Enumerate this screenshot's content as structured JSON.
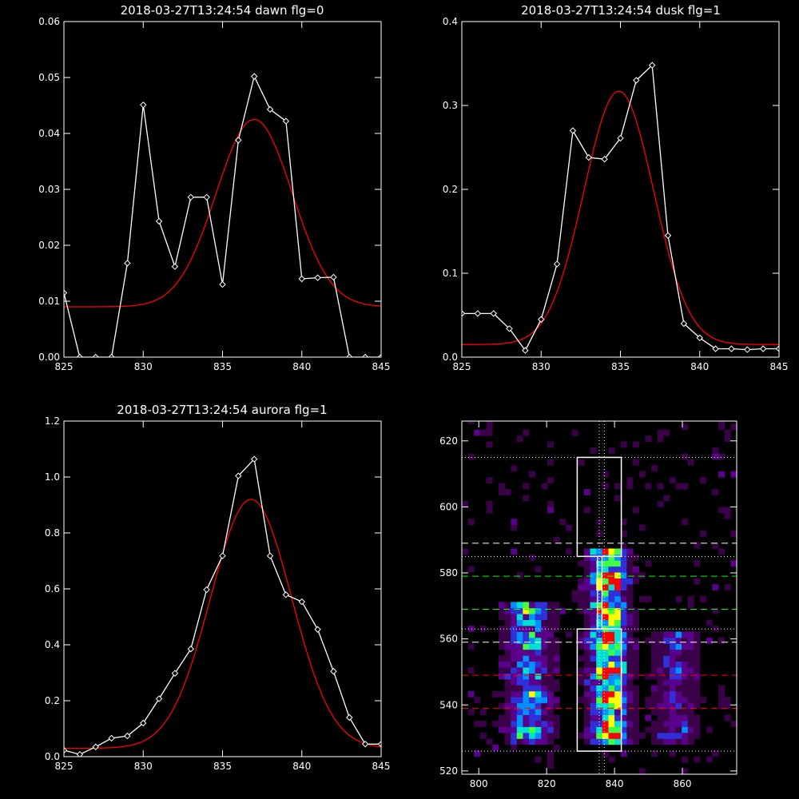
{
  "chart_data": [
    {
      "type": "line",
      "title": "2018-03-27T13:24:54 dawn flg=0",
      "xlim": [
        825,
        845
      ],
      "ylim": [
        0,
        0.06
      ],
      "xticks": [
        "825",
        "830",
        "835",
        "840",
        "845"
      ],
      "yticks": [
        "0.00",
        "0.01",
        "0.02",
        "0.03",
        "0.04",
        "0.05",
        "0.06"
      ],
      "xtick_values": [
        825,
        830,
        835,
        840,
        845
      ],
      "ytick_values": [
        0,
        0.01,
        0.02,
        0.03,
        0.04,
        0.05,
        0.06
      ],
      "series": [
        {
          "kind": "data",
          "color": "#ffffff",
          "marker": "diamond",
          "x": [
            825,
            826,
            827,
            828,
            829,
            830,
            831,
            832,
            833,
            834,
            835,
            836,
            837,
            838,
            839,
            840,
            841,
            842,
            843,
            844,
            845
          ],
          "y": [
            0.0115,
            0.0,
            0.0,
            0.0,
            0.0168,
            0.0451,
            0.0243,
            0.0162,
            0.0286,
            0.0286,
            0.013,
            0.0388,
            0.0502,
            0.0443,
            0.0422,
            0.014,
            0.0142,
            0.0143,
            0.0,
            0.0,
            0.0
          ]
        },
        {
          "kind": "fit",
          "color": "#ff0000",
          "gaussian": {
            "offset": 0.009,
            "amp": 0.0335,
            "center": 837.0,
            "sigma": 2.4
          }
        }
      ]
    },
    {
      "type": "line",
      "title": "2018-03-27T13:24:54 dusk flg=1",
      "xlim": [
        825,
        845
      ],
      "ylim": [
        0,
        0.4
      ],
      "xticks": [
        "825",
        "830",
        "835",
        "840",
        "845"
      ],
      "yticks": [
        "0.0",
        "0.1",
        "0.2",
        "0.3",
        "0.4"
      ],
      "xtick_values": [
        825,
        830,
        835,
        840,
        845
      ],
      "ytick_values": [
        0,
        0.1,
        0.2,
        0.3,
        0.4
      ],
      "series": [
        {
          "kind": "data",
          "color": "#ffffff",
          "marker": "diamond",
          "x": [
            825,
            826,
            827,
            828,
            829,
            830,
            831,
            832,
            833,
            834,
            835,
            836,
            837,
            838,
            839,
            840,
            841,
            842,
            843,
            844,
            845
          ],
          "y": [
            0.052,
            0.052,
            0.052,
            0.034,
            0.008,
            0.045,
            0.111,
            0.27,
            0.238,
            0.236,
            0.261,
            0.33,
            0.348,
            0.145,
            0.04,
            0.023,
            0.01,
            0.01,
            0.009,
            0.01,
            0.01
          ]
        },
        {
          "kind": "fit",
          "color": "#ff0000",
          "gaussian": {
            "offset": 0.015,
            "amp": 0.302,
            "center": 834.9,
            "sigma": 2.2
          }
        }
      ]
    },
    {
      "type": "line",
      "title": "2018-03-27T13:24:54 aurora flg=1",
      "xlim": [
        825,
        845
      ],
      "ylim": [
        0,
        1.2
      ],
      "xticks": [
        "825",
        "830",
        "835",
        "840",
        "845"
      ],
      "yticks": [
        "0.0",
        "0.2",
        "0.4",
        "0.6",
        "0.8",
        "1.0",
        "1.2"
      ],
      "xtick_values": [
        825,
        830,
        835,
        840,
        845
      ],
      "ytick_values": [
        0,
        0.2,
        0.4,
        0.6,
        0.8,
        1.0,
        1.2
      ],
      "series": [
        {
          "kind": "data",
          "color": "#ffffff",
          "marker": "diamond",
          "x": [
            825,
            826,
            827,
            828,
            829,
            830,
            831,
            832,
            833,
            834,
            835,
            836,
            837,
            838,
            839,
            840,
            841,
            842,
            843,
            844,
            845
          ],
          "y": [
            0.023,
            0.008,
            0.035,
            0.066,
            0.074,
            0.12,
            0.207,
            0.298,
            0.385,
            0.597,
            0.718,
            1.004,
            1.064,
            0.718,
            0.579,
            0.554,
            0.455,
            0.305,
            0.14,
            0.045,
            0.045
          ]
        },
        {
          "kind": "fit",
          "color": "#ff0000",
          "gaussian": {
            "offset": 0.03,
            "amp": 0.89,
            "center": 836.8,
            "sigma": 2.55
          }
        }
      ]
    },
    {
      "type": "heatmap",
      "title": "",
      "xlim": [
        795,
        876
      ],
      "ylim": [
        519,
        626
      ],
      "xticks": [
        "800",
        "820",
        "840",
        "860"
      ],
      "yticks": [
        "520",
        "540",
        "560",
        "580",
        "600",
        "620"
      ],
      "xtick_values": [
        800,
        820,
        840,
        860
      ],
      "ytick_values": [
        520,
        540,
        560,
        580,
        600,
        620
      ],
      "colormap": [
        "#000000",
        "#3a0048",
        "#5a008a",
        "#3030d8",
        "#0090ff",
        "#00e0d0",
        "#40ff40",
        "#ffff00",
        "#ff0000"
      ],
      "emission_columns": [
        {
          "center": 814,
          "width": 4,
          "ymin": 527,
          "ymax": 570,
          "peak": 0.6
        },
        {
          "center": 837.5,
          "width": 3.5,
          "ymin": 527,
          "ymax": 586,
          "peak": 1.0
        },
        {
          "center": 857,
          "width": 4,
          "ymin": 527,
          "ymax": 562,
          "peak": 0.35
        }
      ],
      "boxes": [
        {
          "x": [
            829,
            842
          ],
          "y": [
            526,
            563
          ],
          "color": "#ffffff"
        },
        {
          "x": [
            829,
            842
          ],
          "y": [
            585,
            615
          ],
          "color": "#ffffff"
        }
      ],
      "hlines": [
        {
          "y": 615,
          "style": "dotted",
          "color": "#ffffff"
        },
        {
          "y": 589,
          "style": "dashed",
          "color": "#ffffff"
        },
        {
          "y": 585,
          "style": "dotted",
          "color": "#ffffff"
        },
        {
          "y": 579,
          "style": "dashed",
          "color": "#00ff00"
        },
        {
          "y": 569,
          "style": "dashed",
          "color": "#00ff00"
        },
        {
          "y": 563,
          "style": "dotted",
          "color": "#ffffff"
        },
        {
          "y": 559,
          "style": "dashed",
          "color": "#ffffff"
        },
        {
          "y": 549,
          "style": "dashed",
          "color": "#ff0000"
        },
        {
          "y": 539,
          "style": "dashed",
          "color": "#ff0000"
        },
        {
          "y": 526,
          "style": "dotted",
          "color": "#ffffff"
        }
      ],
      "vlines": [
        {
          "x": 835.5,
          "style": "dotted",
          "color": "#ffffff"
        },
        {
          "x": 837,
          "style": "dotted",
          "color": "#ffffff"
        }
      ],
      "vbars": [
        {
          "x": 835,
          "y": [
            563,
            585
          ],
          "color": "#ffffff"
        },
        {
          "x": 836.3,
          "y": [
            563,
            585
          ],
          "color": "#ffffff"
        }
      ]
    }
  ]
}
